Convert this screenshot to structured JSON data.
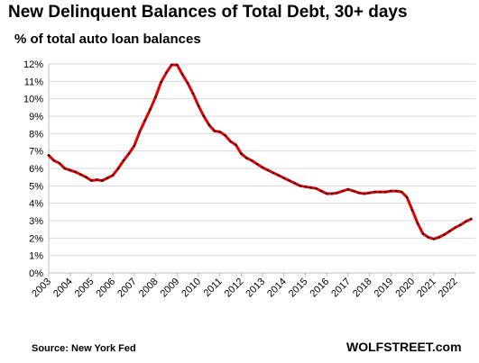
{
  "title": "New Delinquent  Balances of Total Debt, 30+ days",
  "subtitle": "% of total auto loan balances",
  "source": "Source: New York Fed",
  "brand": "WOLFSTREET.com",
  "colors": {
    "line": "#e00000",
    "marker": "#111111",
    "grid": "#d9d9d9",
    "axis": "#bfbfbf"
  },
  "chart_data": {
    "type": "line",
    "title": "New Delinquent  Balances of Total Debt, 30+ days",
    "subtitle": "% of total auto loan balances",
    "xlabel": "",
    "ylabel": "",
    "ylim": [
      0,
      12
    ],
    "xlim": [
      2003,
      2022.95
    ],
    "grid": true,
    "legend": "none",
    "y_ticks": [
      "0%",
      "1%",
      "2%",
      "3%",
      "4%",
      "5%",
      "6%",
      "7%",
      "8%",
      "9%",
      "10%",
      "11%",
      "12%"
    ],
    "x_ticks": [
      "2003",
      "2004",
      "2005",
      "2006",
      "2007",
      "2008",
      "2009",
      "2010",
      "2011",
      "2012",
      "2013",
      "2014",
      "2015",
      "2016",
      "2017",
      "2018",
      "2019",
      "2020",
      "2021",
      "2022"
    ],
    "series": [
      {
        "x": [
          2003.0,
          2003.25,
          2003.5,
          2003.75,
          2004.0,
          2004.25,
          2004.5,
          2004.75,
          2005.0,
          2005.25,
          2005.5,
          2005.75,
          2006.0,
          2006.25,
          2006.5,
          2006.75,
          2007.0,
          2007.25,
          2007.5,
          2007.75,
          2008.0,
          2008.25,
          2008.5,
          2008.75,
          2009.0,
          2009.25,
          2009.5,
          2009.75,
          2010.0,
          2010.25,
          2010.5,
          2010.75,
          2011.0,
          2011.25,
          2011.5,
          2011.75,
          2012.0,
          2012.25,
          2012.5,
          2012.75,
          2013.0,
          2013.25,
          2013.5,
          2013.75,
          2014.0,
          2014.25,
          2014.5,
          2014.75,
          2015.0,
          2015.25,
          2015.5,
          2015.75,
          2016.0,
          2016.25,
          2016.5,
          2016.75,
          2017.0,
          2017.25,
          2017.5,
          2017.75,
          2018.0,
          2018.25,
          2018.5,
          2018.75,
          2019.0,
          2019.25,
          2019.5,
          2019.75,
          2020.0,
          2020.25,
          2020.5,
          2020.75,
          2021.0,
          2021.25,
          2021.5,
          2021.75,
          2022.0,
          2022.25,
          2022.5,
          2022.75
        ],
        "values": [
          6.75,
          6.45,
          6.3,
          6.0,
          5.9,
          5.8,
          5.65,
          5.5,
          5.3,
          5.35,
          5.3,
          5.45,
          5.6,
          6.0,
          6.45,
          6.85,
          7.3,
          8.1,
          8.75,
          9.4,
          10.1,
          10.95,
          11.5,
          11.95,
          11.95,
          11.4,
          10.9,
          10.3,
          9.6,
          9.0,
          8.5,
          8.15,
          8.1,
          7.9,
          7.55,
          7.35,
          6.85,
          6.6,
          6.45,
          6.25,
          6.05,
          5.9,
          5.75,
          5.6,
          5.45,
          5.3,
          5.15,
          5.0,
          4.95,
          4.9,
          4.85,
          4.7,
          4.55,
          4.55,
          4.6,
          4.7,
          4.8,
          4.7,
          4.6,
          4.55,
          4.6,
          4.65,
          4.65,
          4.65,
          4.7,
          4.7,
          4.65,
          4.35,
          3.6,
          2.85,
          2.25,
          2.05,
          1.95,
          2.05,
          2.2,
          2.4,
          2.6,
          2.75,
          2.95,
          3.1
        ]
      }
    ]
  }
}
